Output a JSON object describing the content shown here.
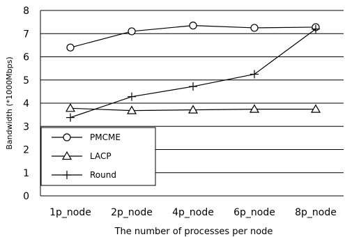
{
  "chart_data": {
    "type": "line",
    "title": "",
    "xlabel": "The number of processes per node",
    "ylabel": "Bandwidth (*1000Mbps)",
    "categories": [
      "1p_node",
      "2p_node",
      "4p_node",
      "6p_node",
      "8p_node"
    ],
    "ylim": [
      0,
      8
    ],
    "yticks": [
      "0",
      "1",
      "2",
      "3",
      "4",
      "5",
      "6",
      "7",
      "8"
    ],
    "grid": "horizontal",
    "legend_position": "lower-left",
    "series": [
      {
        "name": "PMCME",
        "marker": "circle",
        "values": [
          6.4,
          7.1,
          7.35,
          7.25,
          7.28
        ]
      },
      {
        "name": "LACP",
        "marker": "triangle",
        "values": [
          3.78,
          3.68,
          3.71,
          3.74,
          3.74
        ]
      },
      {
        "name": "Round",
        "marker": "plus",
        "values": [
          3.38,
          4.28,
          4.72,
          5.25,
          7.2
        ]
      }
    ]
  }
}
